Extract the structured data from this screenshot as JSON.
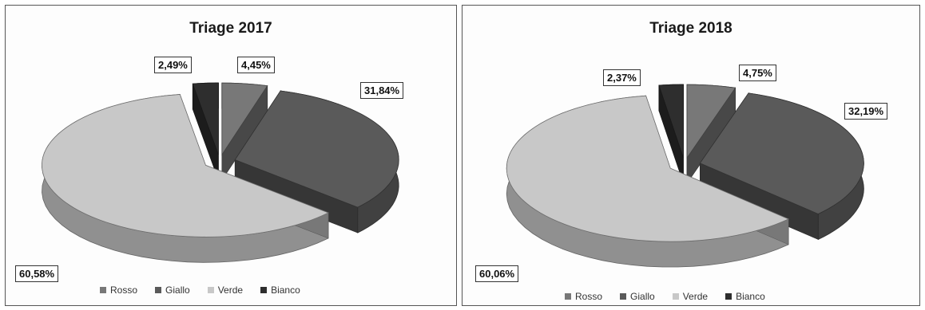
{
  "chart_data": [
    {
      "type": "pie",
      "title": "Triage 2017",
      "categories": [
        "Rosso",
        "Giallo",
        "Verde",
        "Bianco"
      ],
      "values": [
        4.45,
        31.84,
        60.58,
        2.49
      ],
      "labels": [
        "4,45%",
        "31,84%",
        "60,58%",
        "2,49%"
      ],
      "colors": [
        "#787878",
        "#5a5a5a",
        "#c8c8c8",
        "#2e2e2e"
      ],
      "legend_position": "bottom",
      "style": "3d-exploded"
    },
    {
      "type": "pie",
      "title": "Triage 2018",
      "categories": [
        "Rosso",
        "Giallo",
        "Verde",
        "Bianco"
      ],
      "values": [
        4.75,
        32.19,
        60.06,
        2.37
      ],
      "labels": [
        "4,75%",
        "32,19%",
        "60,06%",
        "2,37%"
      ],
      "colors": [
        "#787878",
        "#5a5a5a",
        "#c8c8c8",
        "#2e2e2e"
      ],
      "legend_position": "bottom",
      "style": "3d-exploded"
    }
  ]
}
